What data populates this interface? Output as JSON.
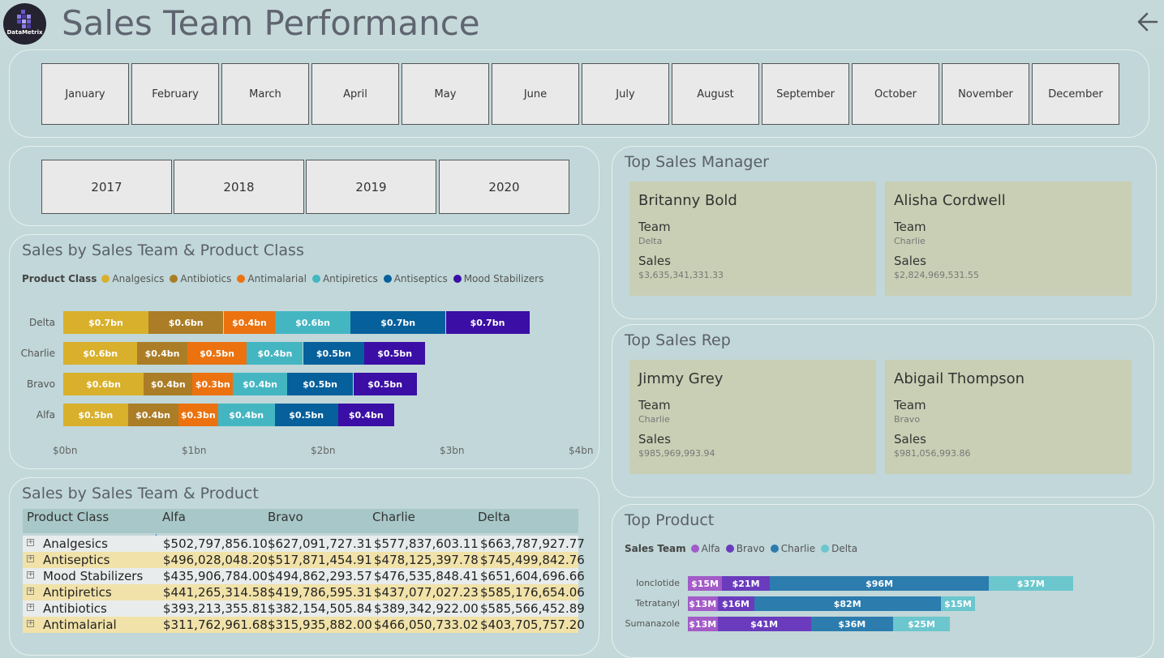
{
  "header": {
    "title": "Sales Team Performance",
    "logo_text": "DataMetrix"
  },
  "months": [
    "January",
    "February",
    "March",
    "April",
    "May",
    "June",
    "July",
    "August",
    "September",
    "October",
    "November",
    "December"
  ],
  "years": [
    "2017",
    "2018",
    "2019",
    "2020"
  ],
  "sales_chart": {
    "title": "Sales by Sales Team & Product Class",
    "legend_title": "Product Class"
  },
  "colors": {
    "Analgesics": "#d8b02c",
    "Antibiotics": "#ab7d27",
    "Antimalarial": "#eb720f",
    "Antipiretics": "#44b6c2",
    "Antiseptics": "#06609b",
    "Mood Stabilizers": "#3b0ea6",
    "Alfa": "#a35bc8",
    "Bravo": "#6a3bbd",
    "Charlie": "#2c7cae",
    "Delta": "#6cc6cd"
  },
  "chart_data": [
    {
      "type": "bar",
      "orientation": "horizontal",
      "stacked": true,
      "title": "Sales by Sales Team & Product Class",
      "categories": [
        "Delta",
        "Charlie",
        "Bravo",
        "Alfa"
      ],
      "series": [
        {
          "name": "Analgesics",
          "values": [
            0.664,
            0.578,
            0.627,
            0.503
          ],
          "labels": [
            "$0.7bn",
            "$0.6bn",
            "$0.6bn",
            "$0.5bn"
          ]
        },
        {
          "name": "Antibiotics",
          "values": [
            0.586,
            0.389,
            0.382,
            0.393
          ],
          "labels": [
            "$0.6bn",
            "$0.4bn",
            "$0.4bn",
            "$0.4bn"
          ]
        },
        {
          "name": "Antimalarial",
          "values": [
            0.404,
            0.466,
            0.316,
            0.312
          ],
          "labels": [
            "$0.4bn",
            "$0.5bn",
            "$0.3bn",
            "$0.3bn"
          ]
        },
        {
          "name": "Antipiretics",
          "values": [
            0.585,
            0.437,
            0.42,
            0.441
          ],
          "labels": [
            "$0.6bn",
            "$0.4bn",
            "$0.4bn",
            "$0.4bn"
          ]
        },
        {
          "name": "Antiseptics",
          "values": [
            0.745,
            0.478,
            0.518,
            0.496
          ],
          "labels": [
            "$0.7bn",
            "$0.5bn",
            "$0.5bn",
            "$0.5bn"
          ]
        },
        {
          "name": "Mood Stabilizers",
          "values": [
            0.652,
            0.477,
            0.495,
            0.436
          ],
          "labels": [
            "$0.7bn",
            "$0.5bn",
            "$0.5bn",
            "$0.4bn"
          ]
        }
      ],
      "xlim": [
        0,
        4
      ],
      "xticks": [
        "$0bn",
        "$1bn",
        "$2bn",
        "$3bn",
        "$4bn"
      ],
      "xlabel": "",
      "ylabel": "",
      "legend": "top-left"
    },
    {
      "type": "bar",
      "orientation": "horizontal",
      "stacked": true,
      "title": "Top Product",
      "categories": [
        "Ionclotide",
        "Tetratanyl",
        "Sumanazole"
      ],
      "series": [
        {
          "name": "Alfa",
          "values": [
            15,
            13,
            13
          ],
          "labels": [
            "$15M",
            "$13M",
            "$13M"
          ]
        },
        {
          "name": "Bravo",
          "values": [
            21,
            16,
            41
          ],
          "labels": [
            "$21M",
            "$16M",
            "$41M"
          ]
        },
        {
          "name": "Charlie",
          "values": [
            96,
            82,
            36
          ],
          "labels": [
            "$96M",
            "$82M",
            "$36M"
          ]
        },
        {
          "name": "Delta",
          "values": [
            37,
            15,
            25
          ],
          "labels": [
            "$37M",
            "$15M",
            "$25M"
          ]
        }
      ],
      "legend": "top-left"
    }
  ],
  "matrix": {
    "title": "Sales by Sales Team & Product",
    "headers": [
      "Product Class",
      "Alfa",
      "Bravo",
      "Charlie",
      "Delta"
    ],
    "rows": [
      [
        "Analgesics",
        "$502,797,856.10",
        "$627,091,727.31",
        "$577,837,603.11",
        "$663,787,927.77"
      ],
      [
        "Antiseptics",
        "$496,028,048.20",
        "$517,871,454.91",
        "$478,125,397.78",
        "$745,499,842.76"
      ],
      [
        "Mood Stabilizers",
        "$435,906,784.00",
        "$494,862,293.57",
        "$476,535,848.41",
        "$651,604,696.66"
      ],
      [
        "Antipiretics",
        "$441,265,314.58",
        "$419,786,595.31",
        "$437,077,027.23",
        "$585,176,654.06"
      ],
      [
        "Antibiotics",
        "$393,213,355.81",
        "$382,154,505.84",
        "$389,342,922.00",
        "$585,566,452.89"
      ],
      [
        "Antimalarial",
        "$311,762,961.68",
        "$315,935,882.00",
        "$466,050,733.02",
        "$403,705,757.20"
      ]
    ]
  },
  "top_manager": {
    "title": "Top Sales Manager",
    "team_label": "Team",
    "sales_label": "Sales",
    "cards": [
      {
        "name": "Britanny Bold",
        "team": "Delta",
        "sales": "$3,635,341,331.33"
      },
      {
        "name": "Alisha Cordwell",
        "team": "Charlie",
        "sales": "$2,824,969,531.55"
      }
    ]
  },
  "top_rep": {
    "title": "Top Sales Rep",
    "team_label": "Team",
    "sales_label": "Sales",
    "cards": [
      {
        "name": "Jimmy Grey",
        "team": "Charlie",
        "sales": "$985,969,993.94"
      },
      {
        "name": "Abigail Thompson",
        "team": "Bravo",
        "sales": "$981,056,993.86"
      }
    ]
  },
  "top_product": {
    "title": "Top Product",
    "legend_title": "Sales Team"
  }
}
